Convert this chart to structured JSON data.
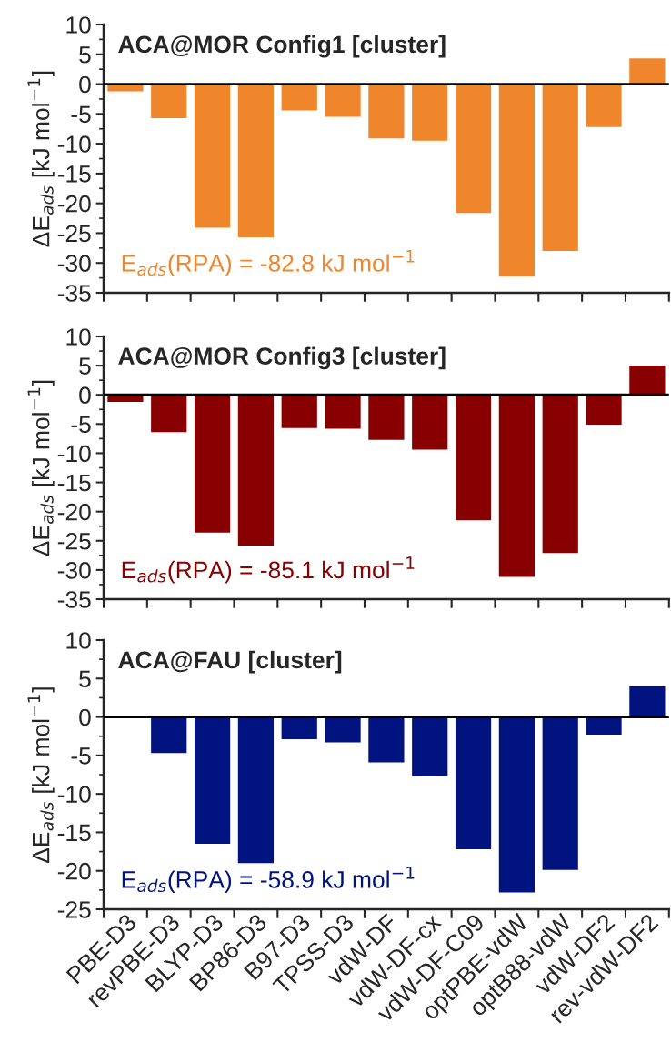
{
  "chart_data": [
    {
      "type": "bar",
      "title": "ACA@MOR Config1 [cluster]",
      "ylabel": "ΔE$_{ads}$ [kJ mol$^{−1}$]",
      "categories": [
        null,
        null,
        null,
        null,
        null,
        null,
        null,
        null,
        null,
        null,
        null,
        null,
        null
      ],
      "values": [
        -1.2,
        -5.7,
        -24.1,
        -25.7,
        -4.4,
        -5.5,
        -9.1,
        -9.5,
        -21.6,
        -32.3,
        -28.0,
        -7.2,
        4.3
      ],
      "color": "#f0862b",
      "ylim": [
        -35,
        10
      ],
      "yticks": [
        -35,
        -30,
        -25,
        -20,
        -15,
        -10,
        -5,
        0,
        5,
        10
      ],
      "tick_labels": "y",
      "grid": false,
      "ref_lines": [
        {
          "axis": "y",
          "value": 0,
          "color": "#000000"
        }
      ],
      "annotations": [
        "E$_{ads}$(RPA) = -82.8 kJ mol$^{−1}$"
      ]
    },
    {
      "type": "bar",
      "title": "ACA@MOR Config3 [cluster]",
      "ylabel": "ΔE$_{ads}$ [kJ mol$^{−1}$]",
      "categories": [
        null,
        null,
        null,
        null,
        null,
        null,
        null,
        null,
        null,
        null,
        null,
        null,
        null
      ],
      "values": [
        -1.2,
        -6.4,
        -23.6,
        -25.8,
        -5.7,
        -5.8,
        -7.7,
        -9.4,
        -21.5,
        -31.2,
        -27.1,
        -5.1,
        5.0
      ],
      "color": "#880000",
      "ylim": [
        -35,
        10
      ],
      "yticks": [
        -35,
        -30,
        -25,
        -20,
        -15,
        -10,
        -5,
        0,
        5,
        10
      ],
      "tick_labels": "y",
      "grid": false,
      "ref_lines": [
        {
          "axis": "y",
          "value": 0,
          "color": "#000000"
        }
      ],
      "annotations": [
        "E$_{ads}$(RPA) = -85.1 kJ mol$^{−1}$"
      ]
    },
    {
      "type": "bar",
      "title": "ACA@FAU [cluster]",
      "ylabel": "ΔE$_{ads}$ [kJ mol$^{−1}$]",
      "categories": [
        "PBE-D3",
        "revPBE-D3",
        "BLYP-D3",
        "BP86-D3",
        "B97-D3",
        "TPSS-D3",
        "vdW-DF",
        "vdW-DF-cx",
        "vdW-DF-C09",
        "optPBE-vdW",
        "optB88-vdW",
        "vdW-DF2",
        "rev-vdW-DF2"
      ],
      "values": [
        0,
        -4.7,
        -16.5,
        -19.0,
        -2.9,
        -3.3,
        -5.9,
        -7.7,
        -17.2,
        -22.8,
        -19.9,
        -2.3,
        4.0
      ],
      "color": "#00137f",
      "ylim": [
        -25,
        10
      ],
      "yticks": [
        -25,
        -20,
        -15,
        -10,
        -5,
        0,
        5,
        10
      ],
      "grid": false,
      "ref_lines": [
        {
          "axis": "y",
          "value": 0,
          "color": "#000000"
        }
      ],
      "annotations": [
        "E$_{ads}$(RPA) = -58.9 kJ mol$^{−1}$"
      ]
    }
  ]
}
